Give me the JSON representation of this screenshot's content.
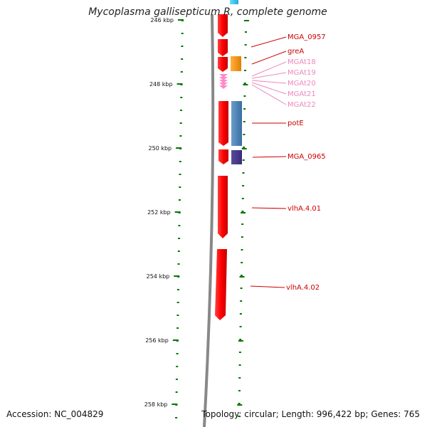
{
  "title": "Mycoplasma gallisepticum R, complete genome",
  "footer": {
    "accession": "Accession: NC_004829",
    "summary": "Topology: circular; Length: 996,422 bp; Genes: 765"
  },
  "ruler": {
    "unit": "kbp",
    "ticks": [
      {
        "kbp": 246,
        "label": "246 kbp"
      },
      {
        "kbp": 248,
        "label": "248 kbp"
      },
      {
        "kbp": 250,
        "label": "250 kbp"
      },
      {
        "kbp": 252,
        "label": "252 kbp"
      },
      {
        "kbp": 254,
        "label": "254 kbp"
      },
      {
        "kbp": 256,
        "label": "256 kbp"
      },
      {
        "kbp": 258,
        "label": "258 kbp"
      }
    ]
  },
  "genes": [
    {
      "label": "MGA_0957",
      "color": "#cc0000"
    },
    {
      "label": "greA",
      "color": "#cc0000"
    },
    {
      "label": "MGAt18",
      "color": "#ee88bb"
    },
    {
      "label": "MGAt19",
      "color": "#ee88bb"
    },
    {
      "label": "MGAt20",
      "color": "#ee88bb"
    },
    {
      "label": "MGAt21",
      "color": "#ee88bb"
    },
    {
      "label": "MGAt22",
      "color": "#ee88bb"
    },
    {
      "label": "potE",
      "color": "#cc0000"
    },
    {
      "label": "MGA_0965",
      "color": "#cc0000"
    },
    {
      "label": "vlhA.4.01",
      "color": "#cc0000"
    },
    {
      "label": "vlhA.4.02",
      "color": "#cc0000"
    }
  ],
  "colors": {
    "cds": "#ff0000",
    "trna": "#ff88c8",
    "cog_orange": "#ff9900",
    "cog_blue": "#4a7fb5",
    "cog_purple": "#4a3a8c",
    "cog_cyan": "#33ccff",
    "ruler_tick": "#007700",
    "backbone": "#888888"
  }
}
